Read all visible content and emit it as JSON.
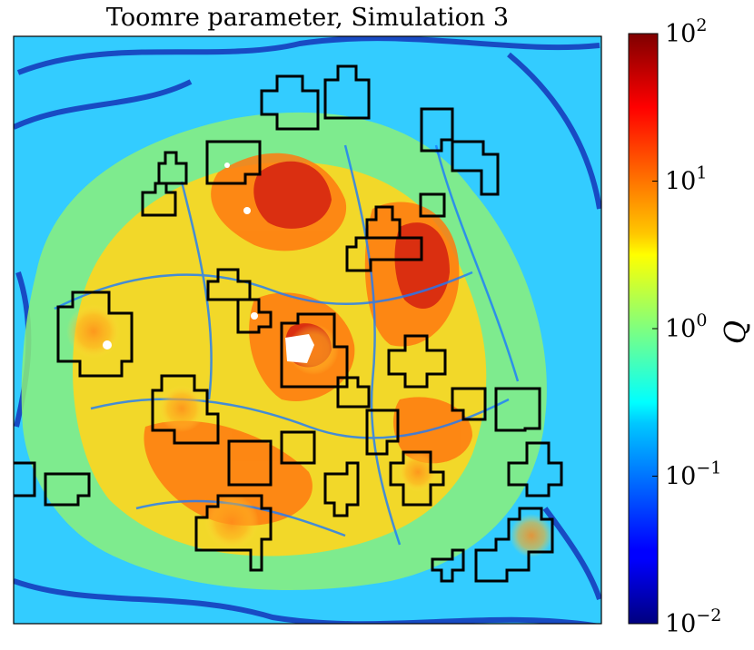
{
  "chart_data": {
    "type": "heatmap",
    "title": "Toomre parameter, Simulation 3",
    "xlabel": "",
    "ylabel": "",
    "x_ticks": "none",
    "y_ticks": "none",
    "colormap": "jet",
    "colorbar": {
      "label": "Q",
      "scale": "log",
      "range": [
        0.01,
        100
      ],
      "ticks": [
        {
          "base": "10",
          "exp": "2",
          "value": 100
        },
        {
          "base": "10",
          "exp": "1",
          "value": 10
        },
        {
          "base": "10",
          "exp": "0",
          "value": 1
        },
        {
          "base": "10",
          "exp": "−1",
          "value": 0.1
        },
        {
          "base": "10",
          "exp": "−2",
          "value": 0.01
        }
      ]
    },
    "overlay": "black outlined boxes marking clump regions",
    "colors": {
      "dark_blue": "#00007f",
      "blue": "#0000ff",
      "cyan": "#00ffff",
      "green_yellow": "#7fff7f",
      "yellow": "#ffff00",
      "orange": "#ff7f00",
      "red": "#ff0000",
      "dark_red": "#7f0000"
    }
  }
}
